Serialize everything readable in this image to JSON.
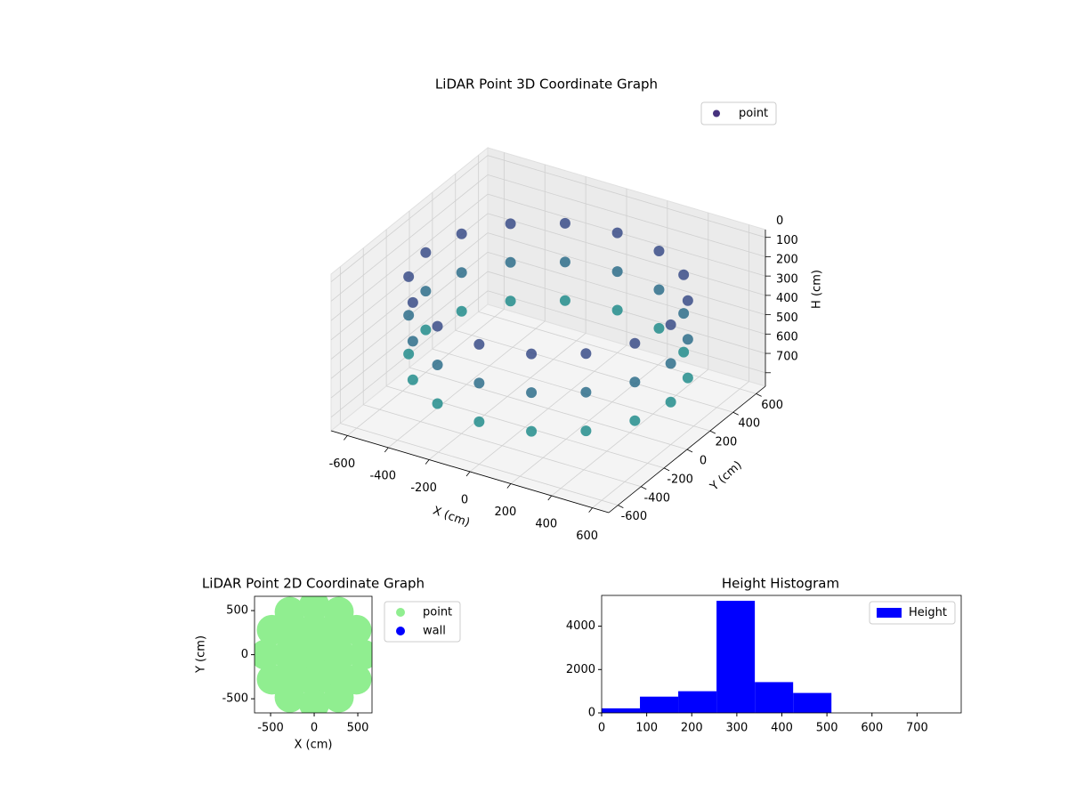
{
  "chart_data": [
    {
      "type": "scatter3d",
      "title": "LiDAR Point 3D Coordinate Graph",
      "xlabel": "X (cm)",
      "ylabel": "Y (cm)",
      "zlabel": "H (cm)",
      "xlim": [
        -680,
        680
      ],
      "ylim": [
        -680,
        680
      ],
      "zlim": [
        770,
        -40
      ],
      "xticks": [
        -600,
        -400,
        -200,
        0,
        200,
        400,
        600
      ],
      "yticks": [
        -600,
        -400,
        -200,
        0,
        200,
        400,
        600
      ],
      "zticks": [
        0,
        100,
        200,
        300,
        400,
        500,
        600,
        700
      ],
      "cmap": "viridis",
      "grid": true,
      "legend": "upper right",
      "series": [
        {
          "name": "point",
          "color": "#46327e",
          "x": [
            600,
            600,
            600,
            554,
            554,
            554,
            424,
            424,
            424,
            230,
            230,
            230,
            0,
            0,
            0,
            -230,
            -230,
            -230,
            -424,
            -424,
            -424,
            -554,
            -554,
            -554,
            -600,
            -600,
            -600,
            -554,
            -554,
            -554,
            -424,
            -424,
            -424,
            -230,
            -230,
            -230,
            0,
            0,
            0,
            230,
            230,
            230,
            424,
            424,
            424,
            554,
            554,
            554
          ],
          "y": [
            0,
            0,
            0,
            230,
            230,
            230,
            424,
            424,
            424,
            554,
            554,
            554,
            600,
            600,
            600,
            554,
            554,
            554,
            424,
            424,
            424,
            230,
            230,
            230,
            0,
            0,
            0,
            -230,
            -230,
            -230,
            -424,
            -424,
            -424,
            -554,
            -554,
            -554,
            -600,
            -600,
            -600,
            -554,
            -554,
            -554,
            -424,
            -424,
            -424,
            -230,
            -230,
            -230
          ],
          "z": [
            150,
            350,
            550,
            150,
            350,
            550,
            150,
            350,
            550,
            150,
            350,
            550,
            150,
            350,
            550,
            150,
            350,
            550,
            150,
            350,
            550,
            150,
            350,
            550,
            150,
            350,
            550,
            150,
            350,
            550,
            150,
            350,
            550,
            150,
            350,
            550,
            150,
            350,
            550,
            150,
            350,
            550,
            150,
            350,
            550,
            150,
            350,
            550
          ]
        }
      ]
    },
    {
      "type": "scatter",
      "title": "LiDAR Point 2D Coordinate Graph",
      "xlabel": "X (cm)",
      "ylabel": "Y (cm)",
      "xlim": [
        -684,
        663
      ],
      "ylim": [
        -660,
        662
      ],
      "xticks": [
        -500,
        0,
        500
      ],
      "yticks": [
        -500,
        0,
        500
      ],
      "legend": "outside right",
      "series": [
        {
          "name": "point",
          "color": "#90ee90",
          "x": [
            0,
            300,
            212,
            0,
            -212,
            -300,
            -212,
            0,
            212,
            560,
            485,
            280,
            0,
            -280,
            -485,
            -560,
            -485,
            -280,
            0,
            280,
            485
          ],
          "y": [
            0,
            0,
            212,
            300,
            212,
            0,
            -212,
            -300,
            -212,
            0,
            280,
            485,
            560,
            485,
            280,
            0,
            -280,
            -485,
            -560,
            -485,
            -280
          ]
        },
        {
          "name": "wall",
          "color": "#0000ff",
          "x": [],
          "y": []
        }
      ]
    },
    {
      "type": "histogram",
      "title": "Height Histogram",
      "name": "Height",
      "color": "#0000ff",
      "bins": [
        0,
        85,
        170,
        255,
        340,
        425,
        510
      ],
      "values": [
        210,
        750,
        1000,
        5170,
        1420,
        920
      ],
      "xlim": [
        0,
        798
      ],
      "ylim": [
        0,
        5420
      ],
      "xticks": [
        0,
        100,
        200,
        300,
        400,
        500,
        600,
        700
      ],
      "yticks": [
        0,
        2000,
        4000
      ],
      "legend": "upper right"
    }
  ]
}
